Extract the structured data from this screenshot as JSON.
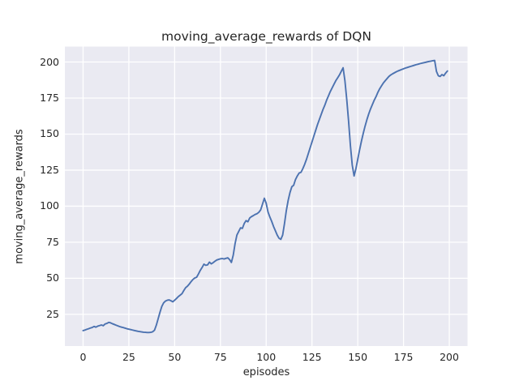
{
  "figure": {
    "title": "moving_average_rewards of DQN",
    "xlabel": "episodes",
    "ylabel": "moving_average_rewards"
  },
  "chart_data": {
    "type": "line",
    "title": "moving_average_rewards of DQN",
    "xlabel": "episodes",
    "ylabel": "moving_average_rewards",
    "x_description": "episode index, one data point per episode from 0 to 199",
    "xlim": [
      -9.95,
      209.95
    ],
    "ylim": [
      3.0,
      210.7
    ],
    "xticks": [
      0,
      25,
      50,
      75,
      100,
      125,
      150,
      175,
      200
    ],
    "yticks": [
      25,
      50,
      75,
      100,
      125,
      150,
      175,
      200
    ],
    "grid": true,
    "legend": "none",
    "style": {
      "fig_bg": "#ffffff",
      "axes_bg": "#eaeaf2",
      "grid_color": "#ffffff",
      "line_color": "#4c72b0",
      "text_color": "#262626",
      "line_width": 1.9
    },
    "series": [
      {
        "name": "moving_average_rewards",
        "x_start": 0,
        "x_step": 1,
        "values": [
          13.7,
          14.1,
          14.6,
          15.0,
          15.5,
          15.9,
          16.6,
          16.1,
          16.8,
          17.2,
          17.6,
          17.1,
          18.3,
          18.7,
          19.4,
          19.1,
          18.5,
          18.0,
          17.5,
          17.0,
          16.5,
          16.1,
          15.8,
          15.4,
          15.0,
          14.7,
          14.4,
          14.1,
          13.8,
          13.5,
          13.2,
          13.0,
          12.8,
          12.6,
          12.5,
          12.4,
          12.4,
          12.5,
          12.9,
          14.0,
          17.5,
          22.0,
          26.5,
          30.5,
          33.0,
          34.2,
          34.8,
          35.0,
          34.4,
          33.7,
          34.8,
          36.0,
          37.3,
          38.3,
          39.3,
          41.5,
          43.5,
          44.5,
          46.0,
          47.7,
          49.2,
          50.2,
          50.7,
          53.0,
          55.5,
          57.5,
          59.8,
          59.0,
          59.3,
          61.2,
          60.0,
          60.8,
          61.8,
          62.7,
          63.1,
          63.5,
          63.7,
          63.4,
          63.8,
          64.2,
          63.0,
          61.0,
          66.0,
          74.0,
          80.0,
          82.5,
          85.0,
          84.6,
          88.0,
          90.0,
          89.2,
          91.8,
          92.8,
          93.5,
          94.3,
          94.8,
          95.8,
          97.5,
          101.5,
          105.5,
          102.0,
          96.0,
          92.5,
          89.5,
          86.0,
          83.0,
          80.0,
          77.8,
          77.0,
          80.0,
          88.0,
          97.0,
          104.0,
          109.5,
          113.5,
          114.5,
          118.5,
          121.0,
          123.0,
          123.5,
          126.0,
          129.0,
          132.5,
          136.5,
          140.5,
          144.5,
          148.5,
          152.5,
          156.5,
          160.0,
          163.5,
          167.0,
          170.0,
          173.5,
          176.5,
          179.5,
          182.0,
          184.5,
          187.0,
          189.0,
          191.0,
          193.5,
          196.0,
          187.0,
          174.0,
          159.0,
          142.0,
          128.5,
          121.0,
          126.0,
          132.5,
          139.0,
          145.0,
          150.5,
          155.5,
          160.0,
          164.0,
          167.5,
          170.5,
          173.5,
          176.0,
          179.0,
          181.5,
          183.5,
          185.5,
          187.0,
          188.5,
          190.0,
          191.0,
          191.8,
          192.5,
          193.2,
          193.8,
          194.3,
          194.8,
          195.3,
          195.8,
          196.2,
          196.6,
          197.0,
          197.4,
          197.8,
          198.2,
          198.5,
          198.9,
          199.2,
          199.5,
          199.8,
          200.1,
          200.4,
          200.6,
          200.9,
          201.1,
          193.5,
          190.5,
          190.0,
          191.3,
          190.5,
          192.3,
          193.8
        ]
      }
    ]
  }
}
